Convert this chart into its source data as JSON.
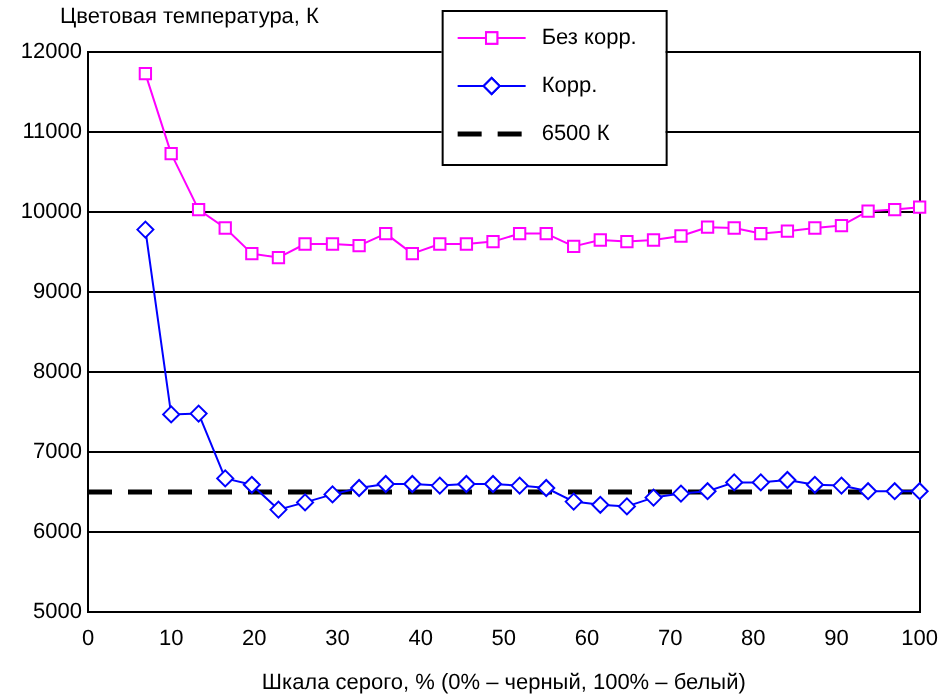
{
  "chart_data": {
    "type": "line",
    "ylabel": "Цветовая температура, К",
    "xlabel": "Шкала серого, % (0% – черный, 100% – белый)",
    "x": [
      6.9,
      10.0,
      13.3,
      16.5,
      19.7,
      22.9,
      26.1,
      29.4,
      32.6,
      35.8,
      39.0,
      42.3,
      45.5,
      48.7,
      51.9,
      55.1,
      58.4,
      61.6,
      64.8,
      68.0,
      71.3,
      74.5,
      77.7,
      80.9,
      84.1,
      87.4,
      90.6,
      93.8,
      97.0,
      100
    ],
    "series": [
      {
        "name": "Без корр.",
        "color": "#ff00ff",
        "marker": "square",
        "values": [
          11730,
          10730,
          10030,
          9800,
          9480,
          9430,
          9600,
          9600,
          9580,
          9730,
          9480,
          9600,
          9600,
          9630,
          9730,
          9730,
          9570,
          9650,
          9630,
          9650,
          9700,
          9810,
          9800,
          9730,
          9760,
          9800,
          9830,
          10010,
          10030,
          10060
        ]
      },
      {
        "name": "Корр.",
        "color": "#0000ff",
        "marker": "diamond",
        "values": [
          9780,
          7470,
          7480,
          6670,
          6590,
          6280,
          6370,
          6470,
          6550,
          6600,
          6600,
          6580,
          6600,
          6600,
          6580,
          6550,
          6380,
          6340,
          6320,
          6430,
          6480,
          6510,
          6620,
          6620,
          6650,
          6590,
          6580,
          6510,
          6510,
          6510
        ]
      },
      {
        "name": "6500 К",
        "color": "#000000",
        "marker": "none",
        "line_style": "dashed",
        "x": [
          0,
          100
        ],
        "values": [
          6500,
          6500
        ]
      }
    ],
    "xlim": [
      0,
      100
    ],
    "xticks": [
      0,
      10,
      20,
      30,
      40,
      50,
      60,
      70,
      80,
      90,
      100
    ],
    "ylim": [
      5000,
      12000
    ],
    "yticks": [
      5000,
      6000,
      7000,
      8000,
      9000,
      10000,
      11000,
      12000
    ],
    "grid": "y",
    "legend": "top right"
  }
}
